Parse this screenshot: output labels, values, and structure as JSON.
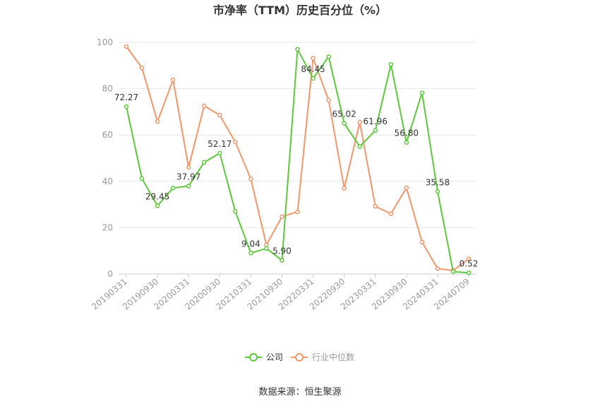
{
  "chart_data": {
    "type": "line",
    "title": "市净率（TTM）历史百分位（%）",
    "xlabel": "",
    "ylabel": "",
    "ylim": [
      0,
      100
    ],
    "yticks": [
      0,
      20,
      40,
      60,
      80,
      100
    ],
    "grid": true,
    "legend_position": "bottom",
    "x_tick_labels": [
      "20190331",
      "20190930",
      "20200331",
      "20200930",
      "20210331",
      "20210930",
      "20220331",
      "20220930",
      "20230331",
      "20230930",
      "20240331",
      "20240709"
    ],
    "x": [
      "20190331",
      "20190630",
      "20190930",
      "20191231",
      "20200331",
      "20200630",
      "20200930",
      "20201231",
      "20210331",
      "20210630",
      "20210930",
      "20211231",
      "20220331",
      "20220630",
      "20220930",
      "20221231",
      "20230331",
      "20230630",
      "20230930",
      "20231231",
      "20240331",
      "20240630",
      "20240709"
    ],
    "series": [
      {
        "name": "公司",
        "color": "#5cc93a",
        "values": [
          72.27,
          41.2,
          29.45,
          37.1,
          37.97,
          48.2,
          52.17,
          27.0,
          9.04,
          11.0,
          5.9,
          97.0,
          84.45,
          93.8,
          65.02,
          55.0,
          61.96,
          90.5,
          56.8,
          78.2,
          35.58,
          1.0,
          0.52
        ],
        "labels": [
          "72.27",
          null,
          "29.45",
          null,
          "37.97",
          null,
          "52.17",
          null,
          "9.04",
          null,
          "5.90",
          null,
          "84.45",
          null,
          "65.02",
          null,
          "61.96",
          null,
          "56.80",
          null,
          "35.58",
          null,
          "0.52"
        ]
      },
      {
        "name": "行业中位数",
        "color": "#f4956a",
        "values": [
          98.2,
          89.0,
          65.8,
          83.8,
          46.0,
          72.6,
          68.6,
          57.0,
          41.0,
          12.5,
          24.8,
          26.8,
          93.2,
          75.0,
          37.0,
          65.5,
          29.2,
          26.0,
          37.2,
          13.8,
          2.3,
          1.5,
          6.5
        ]
      }
    ]
  },
  "legend": {
    "company": "公司",
    "industry": "行业中位数"
  },
  "source": "数据来源：恒生聚源"
}
